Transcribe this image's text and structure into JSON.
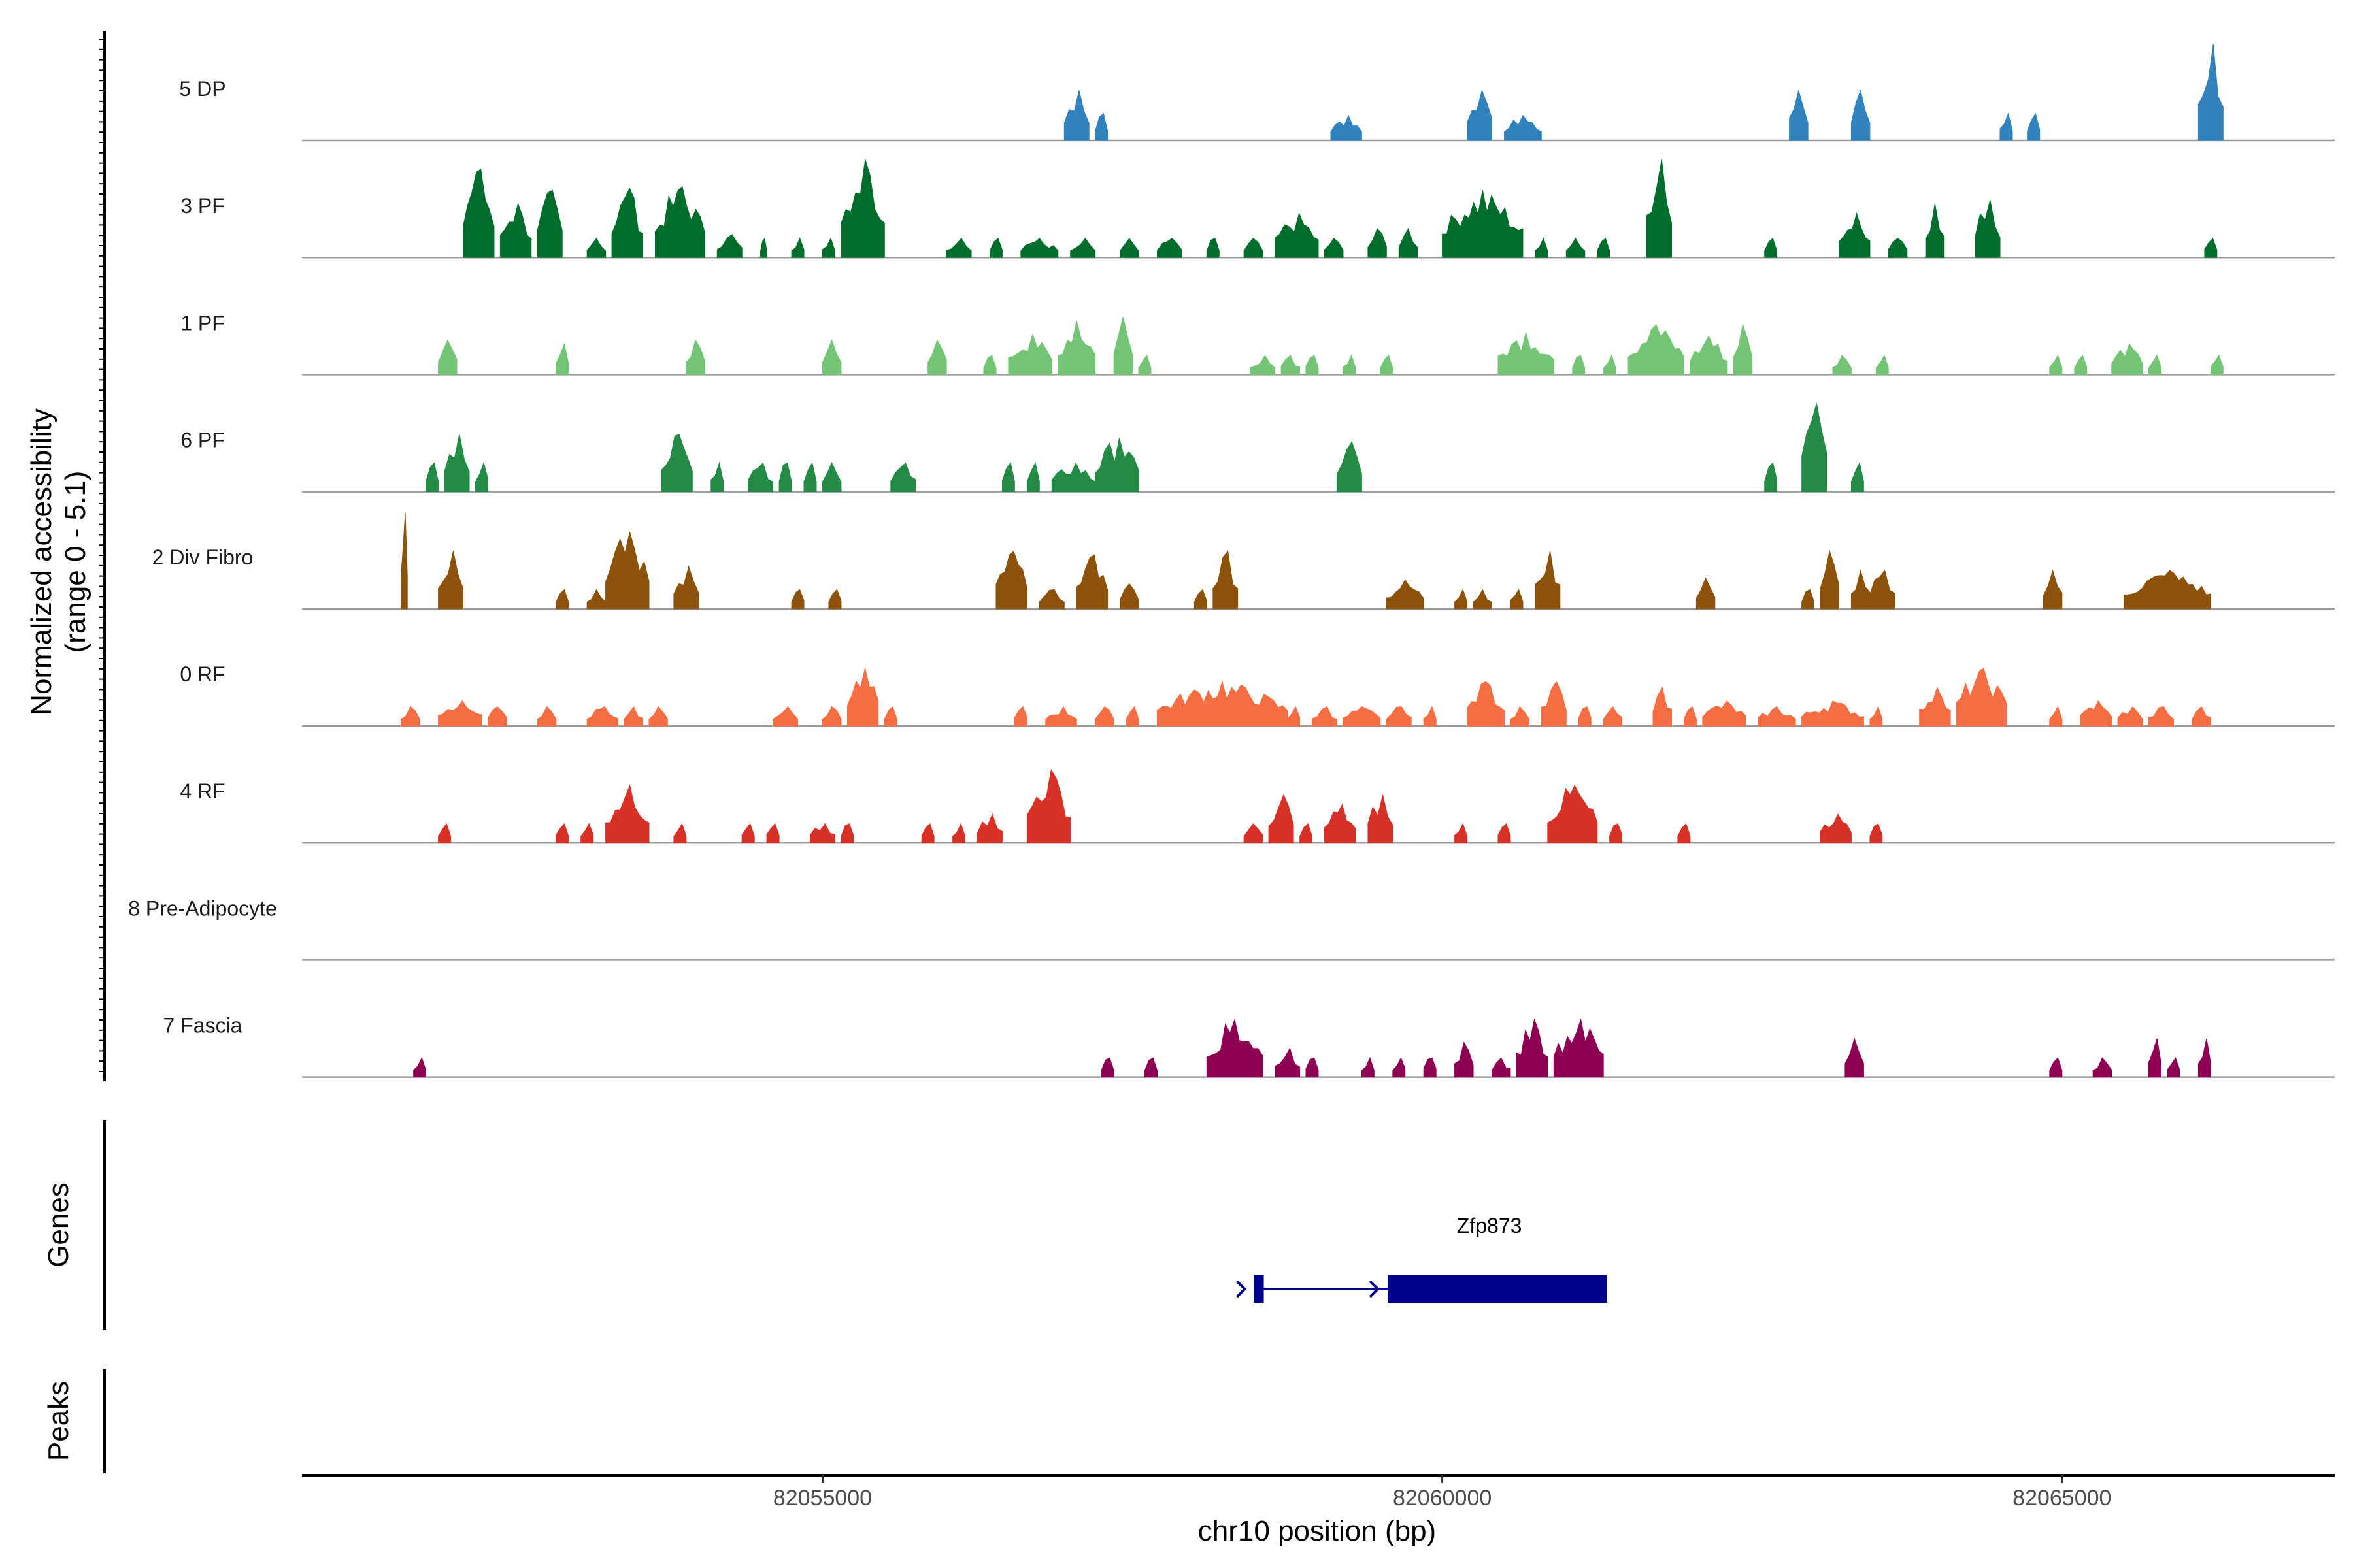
{
  "chart_data": {
    "type": "area",
    "title": "",
    "xlabel": "chr10 position (bp)",
    "ylabel": "Normalized accessibility",
    "ylabel_range": "(range 0 - 5.1)",
    "ylim": [
      0,
      5.1
    ],
    "xlim": [
      82050800,
      82067200
    ],
    "xticks": [
      82055000,
      82060000,
      82065000
    ],
    "xtick_labels": [
      "82055000",
      "82060000",
      "82065000"
    ],
    "genes_label": "Genes",
    "peaks_label": "Peaks",
    "gene": {
      "name": "Zfp873",
      "strand": "+",
      "start": 82058480,
      "end": 82061330,
      "exons": [
        [
          82058480,
          82058560
        ],
        [
          82059560,
          82061330
        ]
      ]
    },
    "series": [
      {
        "name": "5 DP",
        "color": "#3182bd",
        "peaks": [
          [
            82056950,
            82057150,
            2.6
          ],
          [
            82057200,
            82057300,
            1.4
          ],
          [
            82059100,
            82059350,
            1.3
          ],
          [
            82060200,
            82060400,
            2.6
          ],
          [
            82060500,
            82060800,
            1.3
          ],
          [
            82062800,
            82062950,
            2.6
          ],
          [
            82063300,
            82063450,
            2.6
          ],
          [
            82064500,
            82064600,
            1.4
          ],
          [
            82064720,
            82064820,
            1.4
          ],
          [
            82066100,
            82066300,
            5.0
          ]
        ]
      },
      {
        "name": "3 PF",
        "color": "#006d2c",
        "peaks": [
          [
            82052100,
            82052350,
            4.6
          ],
          [
            82052400,
            82052650,
            2.8
          ],
          [
            82052700,
            82052900,
            3.5
          ],
          [
            82053100,
            82053250,
            1.0
          ],
          [
            82053300,
            82053550,
            3.6
          ],
          [
            82053650,
            82054050,
            3.7
          ],
          [
            82054150,
            82054350,
            1.2
          ],
          [
            82054500,
            82054550,
            1.0
          ],
          [
            82054750,
            82054850,
            1.0
          ],
          [
            82055000,
            82055100,
            1.0
          ],
          [
            82055150,
            82055500,
            5.1
          ],
          [
            82056000,
            82056200,
            1.0
          ],
          [
            82056350,
            82056450,
            1.0
          ],
          [
            82056600,
            82056900,
            1.0
          ],
          [
            82057000,
            82057200,
            1.0
          ],
          [
            82057400,
            82057550,
            1.0
          ],
          [
            82057700,
            82057900,
            1.0
          ],
          [
            82058100,
            82058200,
            1.0
          ],
          [
            82058400,
            82058550,
            1.0
          ],
          [
            82058650,
            82059000,
            2.3
          ],
          [
            82059050,
            82059200,
            1.0
          ],
          [
            82059400,
            82059550,
            1.5
          ],
          [
            82059650,
            82059800,
            1.5
          ],
          [
            82060000,
            82060650,
            3.5
          ],
          [
            82060750,
            82060850,
            1.0
          ],
          [
            82061000,
            82061150,
            1.0
          ],
          [
            82061250,
            82061350,
            1.0
          ],
          [
            82061650,
            82061850,
            5.1
          ],
          [
            82062600,
            82062700,
            1.0
          ],
          [
            82063200,
            82063450,
            2.3
          ],
          [
            82063600,
            82063750,
            1.0
          ],
          [
            82063900,
            82064050,
            2.8
          ],
          [
            82064300,
            82064500,
            3.0
          ],
          [
            82066150,
            82066250,
            1.0
          ]
        ]
      },
      {
        "name": "1 PF",
        "color": "#74c476",
        "peaks": [
          [
            82051900,
            82052050,
            1.8
          ],
          [
            82052850,
            82052950,
            1.6
          ],
          [
            82053900,
            82054050,
            1.8
          ],
          [
            82055000,
            82055150,
            1.8
          ],
          [
            82055850,
            82056000,
            1.8
          ],
          [
            82056300,
            82056400,
            1.0
          ],
          [
            82056500,
            82056850,
            2.1
          ],
          [
            82056900,
            82057200,
            2.8
          ],
          [
            82057350,
            82057500,
            3.0
          ],
          [
            82057550,
            82057650,
            1.0
          ],
          [
            82058450,
            82058650,
            1.0
          ],
          [
            82058700,
            82058850,
            1.0
          ],
          [
            82058900,
            82059000,
            1.0
          ],
          [
            82059200,
            82059300,
            1.0
          ],
          [
            82059500,
            82059600,
            1.0
          ],
          [
            82060450,
            82060900,
            2.2
          ],
          [
            82061050,
            82061150,
            1.0
          ],
          [
            82061300,
            82061400,
            1.0
          ],
          [
            82061500,
            82061950,
            2.6
          ],
          [
            82062000,
            82062300,
            2.0
          ],
          [
            82062350,
            82062500,
            2.6
          ],
          [
            82063150,
            82063300,
            1.0
          ],
          [
            82063500,
            82063600,
            1.0
          ],
          [
            82064900,
            82065000,
            1.0
          ],
          [
            82065100,
            82065200,
            1.0
          ],
          [
            82065400,
            82065650,
            1.6
          ],
          [
            82065700,
            82065800,
            1.0
          ],
          [
            82066200,
            82066300,
            1.0
          ]
        ]
      },
      {
        "name": "6 PF",
        "color": "#238b45",
        "peaks": [
          [
            82051800,
            82051900,
            1.5
          ],
          [
            82051950,
            82052150,
            3.0
          ],
          [
            82052200,
            82052300,
            1.5
          ],
          [
            82053700,
            82053950,
            3.0
          ],
          [
            82054100,
            82054200,
            1.5
          ],
          [
            82054400,
            82054600,
            1.5
          ],
          [
            82054650,
            82054750,
            1.5
          ],
          [
            82054850,
            82054950,
            1.5
          ],
          [
            82055000,
            82055150,
            1.5
          ],
          [
            82055550,
            82055750,
            1.5
          ],
          [
            82056450,
            82056550,
            1.5
          ],
          [
            82056650,
            82056750,
            1.5
          ],
          [
            82056850,
            82057200,
            1.5
          ],
          [
            82057200,
            82057550,
            2.8
          ],
          [
            82059150,
            82059350,
            2.6
          ],
          [
            82062600,
            82062700,
            1.5
          ],
          [
            82062900,
            82063100,
            4.6
          ],
          [
            82063300,
            82063400,
            1.5
          ]
        ]
      },
      {
        "name": "2 Div Fibro",
        "color": "#8c510a",
        "peaks": [
          [
            82051600,
            82051650,
            5.0
          ],
          [
            82051900,
            82052100,
            3.0
          ],
          [
            82052850,
            82052950,
            1.0
          ],
          [
            82053100,
            82053250,
            1.0
          ],
          [
            82053250,
            82053600,
            4.0
          ],
          [
            82053800,
            82054000,
            2.2
          ],
          [
            82054750,
            82054850,
            1.0
          ],
          [
            82055050,
            82055150,
            1.0
          ],
          [
            82056400,
            82056650,
            3.0
          ],
          [
            82056750,
            82056950,
            1.0
          ],
          [
            82057050,
            82057300,
            2.8
          ],
          [
            82057400,
            82057550,
            1.3
          ],
          [
            82058000,
            82058100,
            1.0
          ],
          [
            82058150,
            82058350,
            3.0
          ],
          [
            82059550,
            82059850,
            1.5
          ],
          [
            82060100,
            82060200,
            1.0
          ],
          [
            82060250,
            82060400,
            1.0
          ],
          [
            82060550,
            82060650,
            1.0
          ],
          [
            82060750,
            82060950,
            3.0
          ],
          [
            82062050,
            82062200,
            1.6
          ],
          [
            82062900,
            82063000,
            1.0
          ],
          [
            82063050,
            82063200,
            3.0
          ],
          [
            82063300,
            82063450,
            2.0
          ],
          [
            82063450,
            82063650,
            2.0
          ],
          [
            82064850,
            82065000,
            2.0
          ],
          [
            82065500,
            82066200,
            2.0
          ]
        ]
      },
      {
        "name": "0 RF",
        "color": "#f46d43",
        "peaks": [
          [
            82051600,
            82051750,
            1.0
          ],
          [
            82051900,
            82052250,
            1.3
          ],
          [
            82052300,
            82052450,
            1.0
          ],
          [
            82052700,
            82052850,
            1.0
          ],
          [
            82053100,
            82053350,
            1.0
          ],
          [
            82053400,
            82053550,
            1.0
          ],
          [
            82053600,
            82053750,
            1.0
          ],
          [
            82054600,
            82054800,
            1.0
          ],
          [
            82055000,
            82055150,
            1.0
          ],
          [
            82055200,
            82055450,
            3.0
          ],
          [
            82055500,
            82055600,
            1.0
          ],
          [
            82056550,
            82056650,
            1.0
          ],
          [
            82056800,
            82057050,
            1.0
          ],
          [
            82057200,
            82057350,
            1.0
          ],
          [
            82057450,
            82057550,
            1.0
          ],
          [
            82057700,
            82058750,
            2.3
          ],
          [
            82058750,
            82058850,
            1.0
          ],
          [
            82058950,
            82059150,
            1.0
          ],
          [
            82059200,
            82059500,
            1.0
          ],
          [
            82059550,
            82059750,
            1.0
          ],
          [
            82059850,
            82059950,
            1.0
          ],
          [
            82060200,
            82060500,
            2.3
          ],
          [
            82060550,
            82060700,
            1.0
          ],
          [
            82060800,
            82061000,
            2.3
          ],
          [
            82061100,
            82061200,
            1.0
          ],
          [
            82061300,
            82061450,
            1.0
          ],
          [
            82061700,
            82061850,
            2.0
          ],
          [
            82061950,
            82062050,
            1.0
          ],
          [
            82062100,
            82062450,
            1.3
          ],
          [
            82062550,
            82062850,
            1.0
          ],
          [
            82062900,
            82063400,
            1.3
          ],
          [
            82063450,
            82063550,
            1.0
          ],
          [
            82063850,
            82064100,
            2.0
          ],
          [
            82064150,
            82064550,
            3.0
          ],
          [
            82064900,
            82065000,
            1.0
          ],
          [
            82065150,
            82065400,
            1.3
          ],
          [
            82065450,
            82065650,
            1.0
          ],
          [
            82065700,
            82065900,
            1.0
          ],
          [
            82066050,
            82066200,
            1.0
          ]
        ]
      },
      {
        "name": "4 RF",
        "color": "#d73027",
        "peaks": [
          [
            82051900,
            82052000,
            1.0
          ],
          [
            82052850,
            82052950,
            1.0
          ],
          [
            82053050,
            82053150,
            1.0
          ],
          [
            82053250,
            82053600,
            3.0
          ],
          [
            82053800,
            82053900,
            1.0
          ],
          [
            82054350,
            82054450,
            1.0
          ],
          [
            82054550,
            82054650,
            1.0
          ],
          [
            82054900,
            82055100,
            1.0
          ],
          [
            82055150,
            82055250,
            1.0
          ],
          [
            82055800,
            82055900,
            1.0
          ],
          [
            82056050,
            82056150,
            1.0
          ],
          [
            82056250,
            82056450,
            1.5
          ],
          [
            82056650,
            82057000,
            3.8
          ],
          [
            82058400,
            82058550,
            1.0
          ],
          [
            82058600,
            82058800,
            2.5
          ],
          [
            82058850,
            82058950,
            1.0
          ],
          [
            82059050,
            82059300,
            2.0
          ],
          [
            82059400,
            82059600,
            2.5
          ],
          [
            82060100,
            82060200,
            1.0
          ],
          [
            82060450,
            82060550,
            1.0
          ],
          [
            82060850,
            82061250,
            3.0
          ],
          [
            82061350,
            82061450,
            1.0
          ],
          [
            82061900,
            82062000,
            1.0
          ],
          [
            82063050,
            82063300,
            1.5
          ],
          [
            82063450,
            82063550,
            1.0
          ]
        ]
      },
      {
        "name": "8 Pre-Adipocyte",
        "color": "#e7298a",
        "peaks": []
      },
      {
        "name": "7 Fascia",
        "color": "#8e0152",
        "peaks": [
          [
            82051700,
            82051800,
            1.0
          ],
          [
            82057250,
            82057350,
            1.0
          ],
          [
            82057600,
            82057700,
            1.0
          ],
          [
            82058100,
            82058550,
            3.0
          ],
          [
            82058650,
            82058850,
            1.5
          ],
          [
            82058900,
            82059000,
            1.0
          ],
          [
            82059350,
            82059450,
            1.0
          ],
          [
            82059600,
            82059700,
            1.0
          ],
          [
            82059850,
            82059950,
            1.0
          ],
          [
            82060100,
            82060250,
            1.8
          ],
          [
            82060400,
            82060550,
            1.0
          ],
          [
            82060600,
            82060850,
            3.0
          ],
          [
            82060900,
            82061300,
            3.0
          ],
          [
            82063250,
            82063400,
            2.0
          ],
          [
            82064900,
            82065000,
            1.0
          ],
          [
            82065250,
            82065400,
            1.0
          ],
          [
            82065700,
            82065800,
            2.0
          ],
          [
            82065850,
            82065950,
            1.0
          ],
          [
            82066100,
            82066200,
            2.0
          ]
        ]
      }
    ]
  }
}
